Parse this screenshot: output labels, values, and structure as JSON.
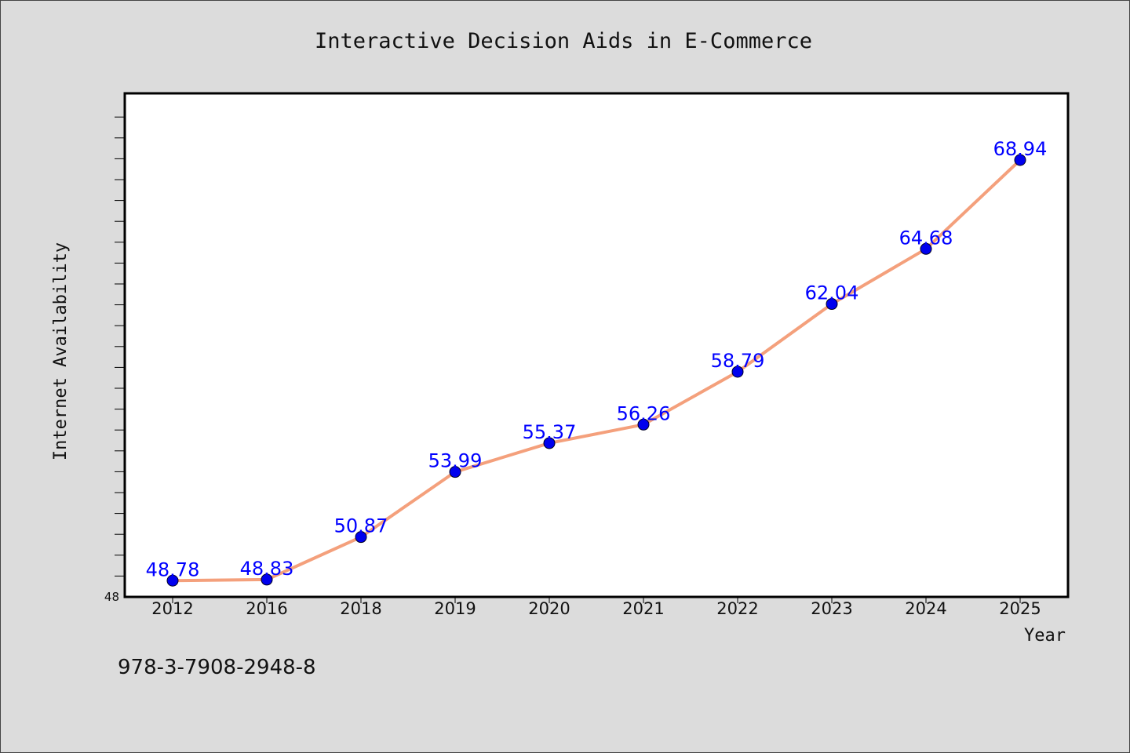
{
  "chart_data": {
    "type": "line",
    "title": "Interactive Decision Aids in E-Commerce",
    "xlabel": "Year",
    "ylabel": "Internet Availability",
    "categories": [
      "2012",
      "2016",
      "2018",
      "2019",
      "2020",
      "2021",
      "2022",
      "2023",
      "2024",
      "2025"
    ],
    "series": [
      {
        "values": [
          48.78,
          48.83,
          50.87,
          53.99,
          55.37,
          56.26,
          58.79,
          62.04,
          64.68,
          68.94
        ],
        "labels": [
          "48.78",
          "48.83",
          "50.87",
          "53.99",
          "55.37",
          "56.26",
          "58.79",
          "62.04",
          "64.68",
          "68.94"
        ]
      }
    ],
    "ylim": [
      48,
      72
    ],
    "y_tick_labels": [
      "48"
    ],
    "grid": false,
    "line_color": "#f4a07c",
    "marker_color": "#0000ee",
    "label_color": "#0000ff"
  },
  "footer": {
    "isbn": "978-3-7908-2948-8"
  }
}
